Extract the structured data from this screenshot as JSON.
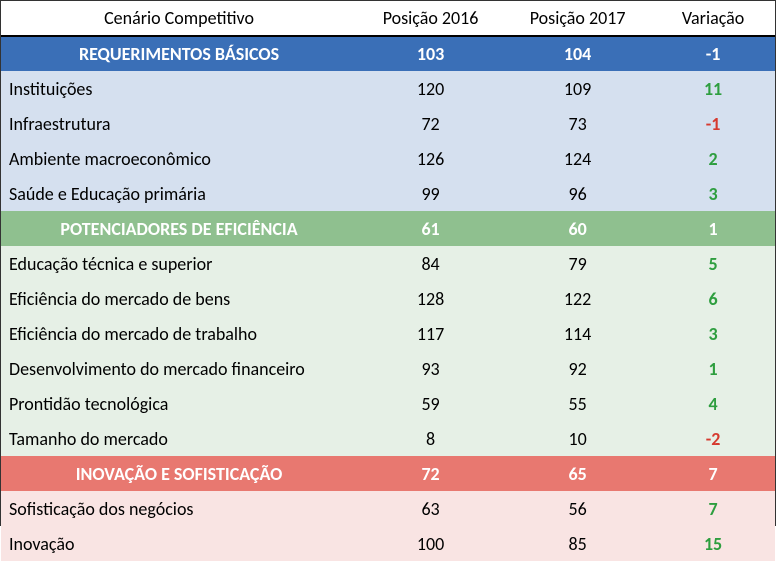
{
  "columns": {
    "scenario": "Cenário Competitivo",
    "pos2016": "Posição 2016",
    "pos2017": "Posição 2017",
    "var": "Variação"
  },
  "colors": {
    "section_blue": "#3a6fb7",
    "section_green": "#8fc08f",
    "section_red": "#e87870",
    "sub_blue": "#d5e0ef",
    "sub_green": "#e6f0e6",
    "sub_red": "#f9e4e3",
    "var_positive": "#2e9e3f",
    "var_negative": "#d63a2f",
    "var_positive_dark": "#1b5e20",
    "header_border": "#000000",
    "background": "#ffffff"
  },
  "typography": {
    "font_family": "Calibri, Arial, sans-serif",
    "font_size_pt": 14,
    "section_font_weight": "bold"
  },
  "sections": [
    {
      "title": "REQUERIMENTOS BÁSICOS",
      "color_class": "blue",
      "pos2016": "103",
      "pos2017": "104",
      "var": "-1",
      "var_sign": "neg",
      "rows": [
        {
          "label": "Instituições",
          "pos2016": "120",
          "pos2017": "109",
          "var": "11",
          "var_sign": "pos"
        },
        {
          "label": "Infraestrutura",
          "pos2016": "72",
          "pos2017": "73",
          "var": "-1",
          "var_sign": "neg"
        },
        {
          "label": "Ambiente macroeconômico",
          "pos2016": "126",
          "pos2017": "124",
          "var": "2",
          "var_sign": "pos"
        },
        {
          "label": "Saúde e Educação primária",
          "pos2016": "99",
          "pos2017": "96",
          "var": "3",
          "var_sign": "pos"
        }
      ]
    },
    {
      "title": "POTENCIADORES DE EFICIÊNCIA",
      "color_class": "green",
      "pos2016": "61",
      "pos2017": "60",
      "var": "1",
      "var_sign": "pos",
      "rows": [
        {
          "label": "Educação técnica e superior",
          "pos2016": "84",
          "pos2017": "79",
          "var": "5",
          "var_sign": "pos"
        },
        {
          "label": "Eficiência do mercado de bens",
          "pos2016": "128",
          "pos2017": "122",
          "var": "6",
          "var_sign": "pos"
        },
        {
          "label": "Eficiência do mercado de trabalho",
          "pos2016": "117",
          "pos2017": "114",
          "var": "3",
          "var_sign": "pos"
        },
        {
          "label": "Desenvolvimento do mercado financeiro",
          "pos2016": "93",
          "pos2017": "92",
          "var": "1",
          "var_sign": "pos"
        },
        {
          "label": "Prontidão tecnológica",
          "pos2016": "59",
          "pos2017": "55",
          "var": "4",
          "var_sign": "pos"
        },
        {
          "label": "Tamanho do mercado",
          "pos2016": "8",
          "pos2017": "10",
          "var": "-2",
          "var_sign": "neg"
        }
      ]
    },
    {
      "title": "INOVAÇÃO E SOFISTICAÇÃO",
      "color_class": "red",
      "pos2016": "72",
      "pos2017": "65",
      "var": "7",
      "var_sign": "posdark",
      "rows": [
        {
          "label": "Sofisticação dos negócios",
          "pos2016": "63",
          "pos2017": "56",
          "var": "7",
          "var_sign": "pos"
        },
        {
          "label": "Inovação",
          "pos2016": "100",
          "pos2017": "85",
          "var": "15",
          "var_sign": "pos"
        }
      ]
    }
  ]
}
